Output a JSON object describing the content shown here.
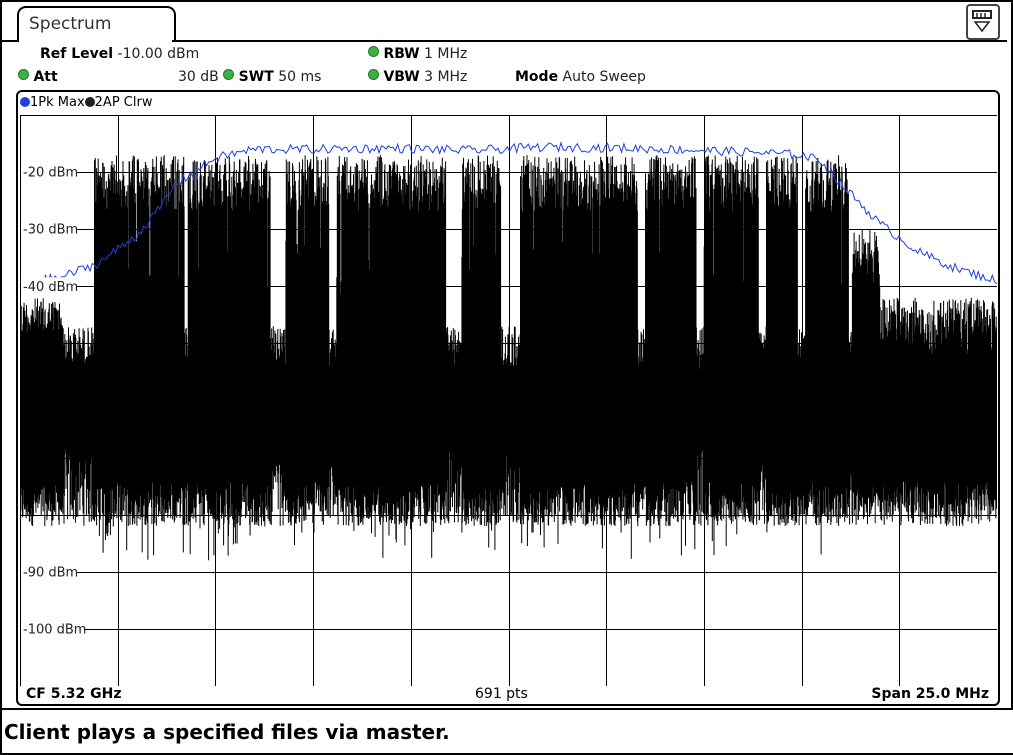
{
  "tab": {
    "label": "Spectrum"
  },
  "settings": {
    "ref_level_label": "Ref Level",
    "ref_level_value": "-10.00 dBm",
    "att_label": "Att",
    "att_value": "30 dB",
    "swt_label": "SWT",
    "swt_value": "50 ms",
    "rbw_label": "RBW",
    "rbw_value": "1 MHz",
    "vbw_label": "VBW",
    "vbw_value": "3 MHz",
    "mode_label": "Mode",
    "mode_value": "Auto Sweep"
  },
  "traces": [
    {
      "label": "1Pk Max",
      "color": "#1f3fe0"
    },
    {
      "label": "2AP Clrw",
      "color": "#202020"
    }
  ],
  "chart_data": {
    "type": "line",
    "y_tick_labels": [
      "-20 dBm",
      "-30 dBm",
      "-40 dBm",
      "-90 dBm",
      "-100 dBm"
    ],
    "y_ticks_dbm": [
      -20,
      -30,
      -40,
      -90,
      -100
    ],
    "ylim": [
      -110,
      -10
    ],
    "x_divisions": 10,
    "y_divisions": 10,
    "grid": true,
    "series": [
      {
        "name": "1Pk Max",
        "color": "#1f3fe0",
        "x_mhz": [
          -12.5,
          -11.5,
          -10.5,
          -9.5,
          -9.0,
          -8.5,
          -7.5,
          -6.5,
          -5.0,
          -3.0,
          -1.0,
          1.0,
          3.0,
          5.0,
          6.5,
          7.5,
          8.0,
          8.5,
          9.5,
          10.5,
          11.5,
          12.5
        ],
        "y_dbm": [
          -39.5,
          -38.5,
          -36,
          -31,
          -27,
          -22,
          -17.5,
          -16,
          -16,
          -15.8,
          -16.2,
          -15.6,
          -15.8,
          -16.2,
          -16.6,
          -17,
          -18,
          -22,
          -29,
          -34,
          -37,
          -39
        ]
      },
      {
        "name": "2AP Clrw",
        "color": "#000000",
        "band_top_dbm": -17,
        "band_bottom_dbm": -82,
        "gap_floor_dbm": [
          -47,
          -82
        ],
        "edge_top_dbm": -42
      }
    ]
  },
  "footer": {
    "cf": "CF 5.32 GHz",
    "points": "691 pts",
    "span": "Span 25.0 MHz"
  },
  "caption": "Client plays a specified files via master."
}
